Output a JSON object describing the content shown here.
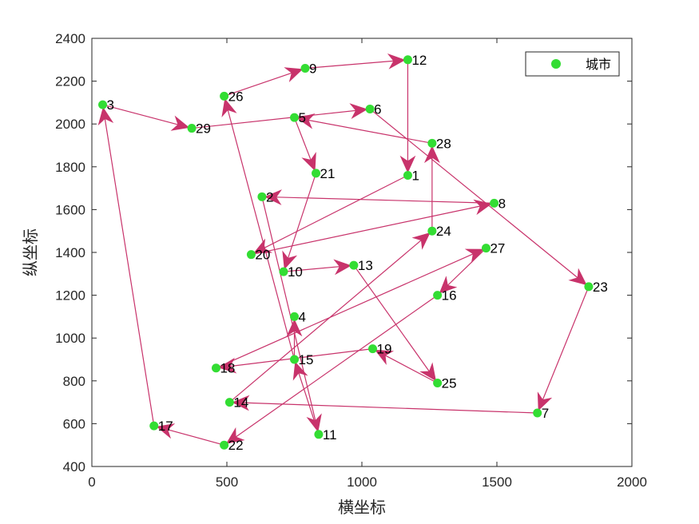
{
  "chart_data": {
    "type": "scatter",
    "title": "",
    "xlabel": "横坐标",
    "ylabel": "纵坐标",
    "xlim": [
      0,
      2000
    ],
    "ylim": [
      400,
      2400
    ],
    "xticks": [
      0,
      500,
      1000,
      1500,
      2000
    ],
    "yticks": [
      400,
      600,
      800,
      1000,
      1200,
      1400,
      1600,
      1800,
      2000,
      2200,
      2400
    ],
    "grid": false,
    "legend": {
      "position": "top-right",
      "entries": [
        "城市"
      ]
    },
    "colors": {
      "marker": "#33dd33",
      "route": "#c8336b",
      "axis": "#262626"
    },
    "points": [
      {
        "id": "1",
        "x": 1170,
        "y": 1760
      },
      {
        "id": "2",
        "x": 630,
        "y": 1660
      },
      {
        "id": "3",
        "x": 40,
        "y": 2090
      },
      {
        "id": "4",
        "x": 750,
        "y": 1100
      },
      {
        "id": "5",
        "x": 750,
        "y": 2030
      },
      {
        "id": "6",
        "x": 1030,
        "y": 2070
      },
      {
        "id": "7",
        "x": 1650,
        "y": 650
      },
      {
        "id": "8",
        "x": 1490,
        "y": 1630
      },
      {
        "id": "9",
        "x": 790,
        "y": 2260
      },
      {
        "id": "10",
        "x": 710,
        "y": 1310
      },
      {
        "id": "11",
        "x": 840,
        "y": 550
      },
      {
        "id": "12",
        "x": 1170,
        "y": 2300
      },
      {
        "id": "13",
        "x": 970,
        "y": 1340
      },
      {
        "id": "14",
        "x": 510,
        "y": 700
      },
      {
        "id": "15",
        "x": 750,
        "y": 900
      },
      {
        "id": "16",
        "x": 1280,
        "y": 1200
      },
      {
        "id": "17",
        "x": 230,
        "y": 590
      },
      {
        "id": "18",
        "x": 460,
        "y": 860
      },
      {
        "id": "19",
        "x": 1040,
        "y": 950
      },
      {
        "id": "20",
        "x": 590,
        "y": 1390
      },
      {
        "id": "21",
        "x": 830,
        "y": 1770
      },
      {
        "id": "22",
        "x": 490,
        "y": 500
      },
      {
        "id": "23",
        "x": 1840,
        "y": 1240
      },
      {
        "id": "24",
        "x": 1260,
        "y": 1500
      },
      {
        "id": "25",
        "x": 1280,
        "y": 790
      },
      {
        "id": "26",
        "x": 490,
        "y": 2130
      },
      {
        "id": "27",
        "x": 1460,
        "y": 1420
      },
      {
        "id": "28",
        "x": 1260,
        "y": 1910
      },
      {
        "id": "29",
        "x": 370,
        "y": 1980
      }
    ],
    "route": [
      "3",
      "29",
      "6",
      "23",
      "7",
      "14",
      "24",
      "28",
      "5",
      "21",
      "10",
      "13",
      "25",
      "19",
      "18",
      "27",
      "16",
      "22",
      "17",
      "3"
    ],
    "route2": [
      "26",
      "9",
      "12",
      "1",
      "20",
      "8",
      "2",
      "11",
      "15",
      "26"
    ],
    "route3": [
      "15",
      "4"
    ]
  }
}
